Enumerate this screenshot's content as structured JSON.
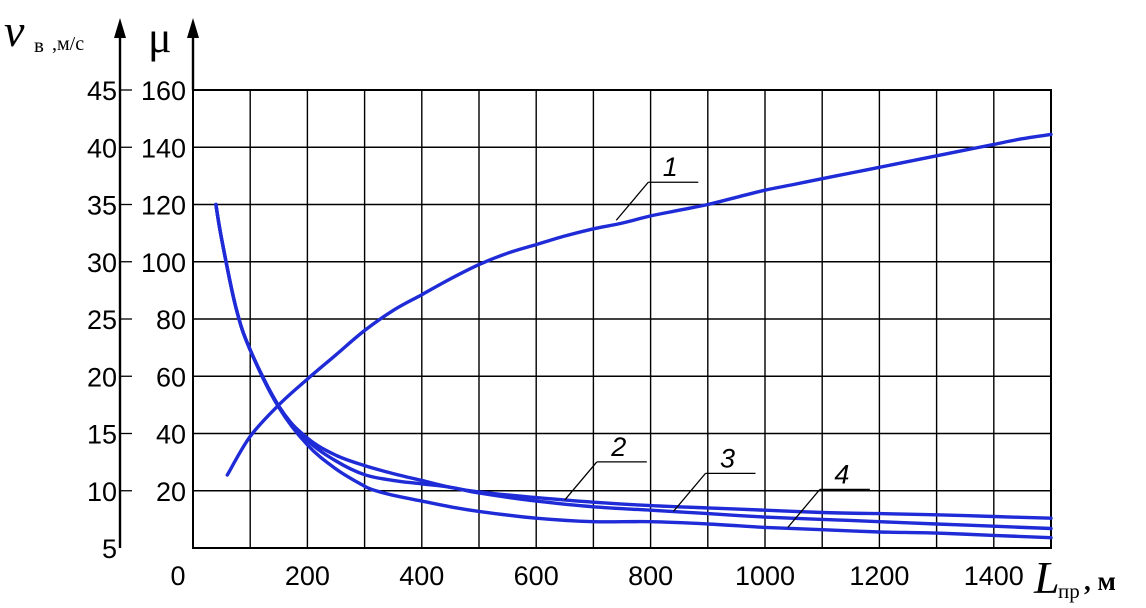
{
  "chart_data": {
    "type": "line",
    "x_axis": {
      "symbol": "L",
      "subscript": "пр",
      "unit": ", м",
      "ticks": [
        0,
        200,
        400,
        600,
        800,
        1000,
        1200,
        1400
      ],
      "range": [
        0,
        1500
      ],
      "gridlines_every": 100
    },
    "y_axis_left": {
      "symbol": "v",
      "subscript": "в",
      "unit": ",м/с",
      "ticks": [
        5,
        10,
        15,
        20,
        25,
        30,
        35,
        40,
        45
      ],
      "range": [
        5,
        45
      ]
    },
    "y_axis_right": {
      "symbol": "μ",
      "ticks": [
        20,
        40,
        60,
        80,
        100,
        120,
        140,
        160
      ],
      "range": [
        0,
        160
      ]
    },
    "grid": true,
    "series": [
      {
        "name": "1",
        "axis": "μ",
        "color": "#1f2bd6",
        "x": [
          60,
          100,
          150,
          200,
          250,
          300,
          350,
          400,
          450,
          500,
          550,
          600,
          650,
          700,
          750,
          800,
          850,
          900,
          950,
          1000,
          1050,
          1100,
          1150,
          1200,
          1250,
          1300,
          1350,
          1400,
          1450,
          1500
        ],
        "y": [
          25.5,
          39,
          50,
          59,
          67.5,
          76,
          83,
          88.5,
          94,
          99,
          103,
          106,
          109,
          111.5,
          113.5,
          116,
          118,
          120,
          122.5,
          125,
          127,
          129,
          131,
          133,
          135,
          137,
          139,
          141,
          143,
          144.5
        ]
      },
      {
        "name": "2",
        "axis": "v",
        "color": "#1f2bd6",
        "x": [
          40,
          50,
          75,
          100,
          150,
          200,
          250,
          300,
          350,
          400,
          450,
          500,
          600,
          700,
          800,
          900,
          1000,
          1100,
          1200,
          1300,
          1400,
          1500
        ],
        "y": [
          35,
          32,
          26,
          22.3,
          17.3,
          14.6,
          13.1,
          12.2,
          11.5,
          10.9,
          10.3,
          9.9,
          9.4,
          9.0,
          8.7,
          8.5,
          8.3,
          8.1,
          8.0,
          7.9,
          7.75,
          7.6
        ]
      },
      {
        "name": "3",
        "axis": "v",
        "color": "#1f2bd6",
        "x": [
          40,
          50,
          75,
          100,
          150,
          200,
          250,
          300,
          350,
          400,
          450,
          500,
          600,
          700,
          800,
          900,
          1000,
          1100,
          1200,
          1300,
          1400,
          1500
        ],
        "y": [
          35,
          32,
          26,
          22.3,
          17.4,
          14.4,
          12.6,
          11.4,
          10.9,
          10.6,
          10.3,
          9.8,
          9.1,
          8.6,
          8.3,
          8.0,
          7.7,
          7.5,
          7.3,
          7.1,
          6.9,
          6.7
        ]
      },
      {
        "name": "4",
        "axis": "v",
        "color": "#1f2bd6",
        "x": [
          40,
          50,
          75,
          100,
          150,
          200,
          250,
          300,
          320,
          350,
          400,
          450,
          500,
          600,
          700,
          800,
          900,
          1000,
          1100,
          1200,
          1300,
          1400,
          1500
        ],
        "y": [
          35,
          32,
          26,
          22.3,
          17.3,
          14.0,
          11.9,
          10.4,
          10.0,
          9.6,
          9.1,
          8.6,
          8.2,
          7.6,
          7.3,
          7.3,
          7.1,
          6.8,
          6.6,
          6.4,
          6.3,
          6.1,
          5.9
        ]
      }
    ],
    "annotations": [
      {
        "text": "1",
        "series": "1",
        "x": 740,
        "y_mu": 114.5
      },
      {
        "text": "2",
        "series": "2",
        "x": 650,
        "y_v": 9.2
      },
      {
        "text": "3",
        "series": "3",
        "x": 840,
        "y_v": 8.2
      },
      {
        "text": "4",
        "series": "4",
        "x": 1040,
        "y_v": 6.8
      }
    ]
  }
}
